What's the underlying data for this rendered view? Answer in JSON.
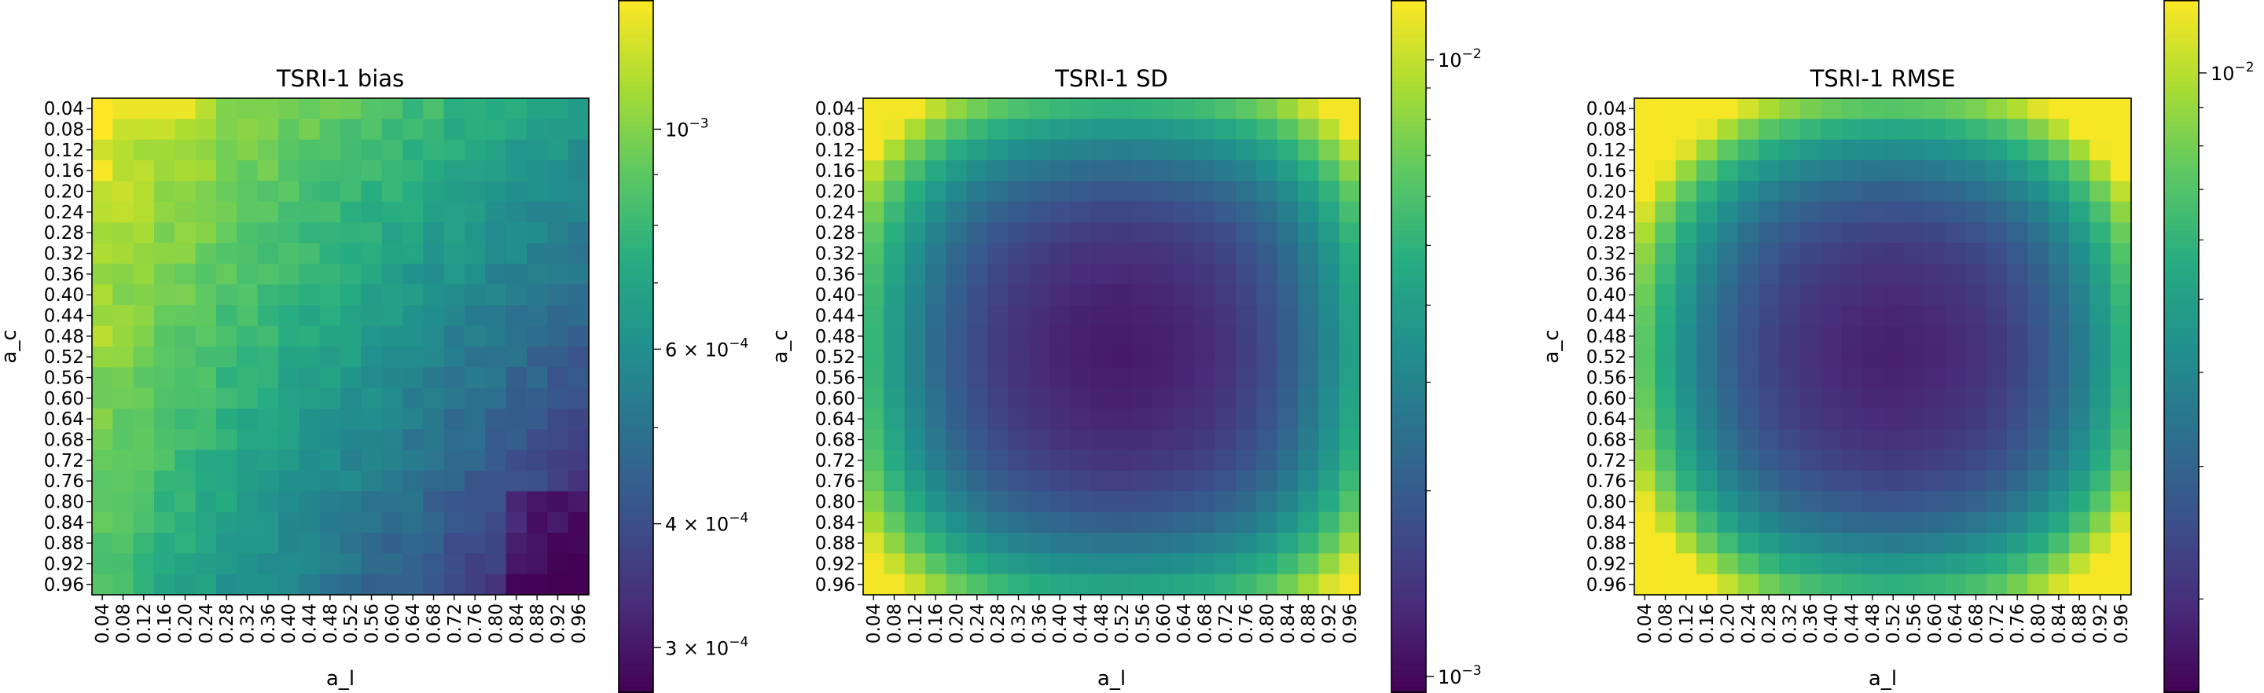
{
  "chart_data": [
    {
      "type": "heatmap",
      "title": "TSRI-1 bias",
      "xlabel": "a_l",
      "ylabel": "a_c",
      "x_ticks": [
        "0.04",
        "0.08",
        "0.12",
        "0.16",
        "0.20",
        "0.24",
        "0.28",
        "0.32",
        "0.36",
        "0.40",
        "0.44",
        "0.48",
        "0.52",
        "0.56",
        "0.60",
        "0.64",
        "0.68",
        "0.72",
        "0.76",
        "0.80",
        "0.84",
        "0.88",
        "0.92",
        "0.96"
      ],
      "y_ticks": [
        "0.04",
        "0.08",
        "0.12",
        "0.16",
        "0.20",
        "0.24",
        "0.28",
        "0.32",
        "0.36",
        "0.40",
        "0.44",
        "0.48",
        "0.52",
        "0.56",
        "0.60",
        "0.64",
        "0.68",
        "0.72",
        "0.76",
        "0.80",
        "0.84",
        "0.88",
        "0.92",
        "0.96"
      ],
      "x_tick_values": [
        0.04,
        0.08,
        0.12,
        0.16,
        0.2,
        0.24,
        0.28,
        0.32,
        0.36,
        0.4,
        0.44,
        0.48,
        0.52,
        0.56,
        0.6,
        0.64,
        0.68,
        0.72,
        0.76,
        0.8,
        0.84,
        0.88,
        0.92,
        0.96
      ],
      "y_tick_values": [
        0.04,
        0.08,
        0.12,
        0.16,
        0.2,
        0.24,
        0.28,
        0.32,
        0.36,
        0.4,
        0.44,
        0.48,
        0.52,
        0.56,
        0.6,
        0.64,
        0.68,
        0.72,
        0.76,
        0.8,
        0.84,
        0.88,
        0.92,
        0.96
      ],
      "colormap": "viridis",
      "color_scale": "log",
      "color_range": [
        0.00027,
        0.00135
      ],
      "colorbar_labels": [
        {
          "value": 0.001,
          "base": "10",
          "exp": "−3"
        },
        {
          "value": 0.0006,
          "base": "6 × 10",
          "exp": "−4"
        },
        {
          "value": 0.0004,
          "base": "4 × 10",
          "exp": "−4"
        },
        {
          "value": 0.0003,
          "base": "3 × 10",
          "exp": "−4"
        }
      ],
      "colorbar_minor_ticks": [
        0.0005,
        0.0007,
        0.0008,
        0.0009
      ],
      "values_model": "bias"
    },
    {
      "type": "heatmap",
      "title": "TSRI-1 SD",
      "xlabel": "a_l",
      "ylabel": "a_c",
      "x_ticks": [
        "0.04",
        "0.08",
        "0.12",
        "0.16",
        "0.20",
        "0.24",
        "0.28",
        "0.32",
        "0.36",
        "0.40",
        "0.44",
        "0.48",
        "0.52",
        "0.56",
        "0.60",
        "0.64",
        "0.68",
        "0.72",
        "0.76",
        "0.80",
        "0.84",
        "0.88",
        "0.92",
        "0.96"
      ],
      "y_ticks": [
        "0.04",
        "0.08",
        "0.12",
        "0.16",
        "0.20",
        "0.24",
        "0.28",
        "0.32",
        "0.36",
        "0.40",
        "0.44",
        "0.48",
        "0.52",
        "0.56",
        "0.60",
        "0.64",
        "0.68",
        "0.72",
        "0.76",
        "0.80",
        "0.84",
        "0.88",
        "0.92",
        "0.96"
      ],
      "x_tick_values": [
        0.04,
        0.08,
        0.12,
        0.16,
        0.2,
        0.24,
        0.28,
        0.32,
        0.36,
        0.4,
        0.44,
        0.48,
        0.52,
        0.56,
        0.6,
        0.64,
        0.68,
        0.72,
        0.76,
        0.8,
        0.84,
        0.88,
        0.92,
        0.96
      ],
      "y_tick_values": [
        0.04,
        0.08,
        0.12,
        0.16,
        0.2,
        0.24,
        0.28,
        0.32,
        0.36,
        0.4,
        0.44,
        0.48,
        0.52,
        0.56,
        0.6,
        0.64,
        0.68,
        0.72,
        0.76,
        0.8,
        0.84,
        0.88,
        0.92,
        0.96
      ],
      "colormap": "viridis",
      "color_scale": "log",
      "color_range": [
        0.00094,
        0.0125
      ],
      "colorbar_labels": [
        {
          "value": 0.01,
          "base": "10",
          "exp": "−2"
        },
        {
          "value": 0.001,
          "base": "10",
          "exp": "−3"
        }
      ],
      "colorbar_minor_ticks": [
        0.002,
        0.003,
        0.004,
        0.005,
        0.006,
        0.007,
        0.008,
        0.009
      ],
      "values_model": "sd"
    },
    {
      "type": "heatmap",
      "title": "TSRI-1 RMSE",
      "xlabel": "a_l",
      "ylabel": "a_c",
      "x_ticks": [
        "0.04",
        "0.08",
        "0.12",
        "0.16",
        "0.20",
        "0.24",
        "0.28",
        "0.32",
        "0.36",
        "0.40",
        "0.44",
        "0.48",
        "0.52",
        "0.56",
        "0.60",
        "0.64",
        "0.68",
        "0.72",
        "0.76",
        "0.80",
        "0.84",
        "0.88",
        "0.92",
        "0.96"
      ],
      "y_ticks": [
        "0.04",
        "0.08",
        "0.12",
        "0.16",
        "0.20",
        "0.24",
        "0.28",
        "0.32",
        "0.36",
        "0.40",
        "0.44",
        "0.48",
        "0.52",
        "0.56",
        "0.60",
        "0.64",
        "0.68",
        "0.72",
        "0.76",
        "0.80",
        "0.84",
        "0.88",
        "0.92",
        "0.96"
      ],
      "x_tick_values": [
        0.04,
        0.08,
        0.12,
        0.16,
        0.2,
        0.24,
        0.28,
        0.32,
        0.36,
        0.4,
        0.44,
        0.48,
        0.52,
        0.56,
        0.6,
        0.64,
        0.68,
        0.72,
        0.76,
        0.8,
        0.84,
        0.88,
        0.92,
        0.96
      ],
      "y_tick_values": [
        0.04,
        0.08,
        0.12,
        0.16,
        0.2,
        0.24,
        0.28,
        0.32,
        0.36,
        0.4,
        0.44,
        0.48,
        0.52,
        0.56,
        0.6,
        0.64,
        0.68,
        0.72,
        0.76,
        0.8,
        0.84,
        0.88,
        0.92,
        0.96
      ],
      "colormap": "viridis",
      "color_scale": "log",
      "color_range": [
        0.0015,
        0.0125
      ],
      "colorbar_labels": [
        {
          "value": 0.01,
          "base": "10",
          "exp": "−2"
        }
      ],
      "colorbar_minor_ticks": [
        0.002,
        0.003,
        0.004,
        0.005,
        0.006,
        0.007,
        0.008,
        0.009
      ],
      "values_model": "rmse"
    }
  ]
}
